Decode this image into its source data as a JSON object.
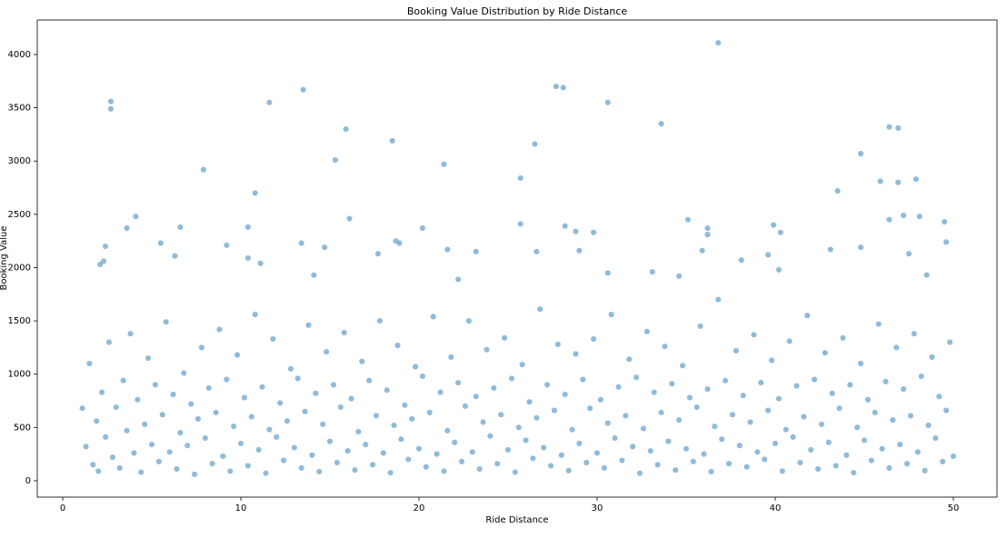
{
  "chart_data": {
    "type": "scatter",
    "title": "Booking Value Distribution by Ride Distance",
    "x_label": "Ride Distance",
    "y_label": "Booking Value",
    "color": "#1f77b4",
    "opacity": 0.5,
    "xlim": [
      -1.43,
      52.45
    ],
    "ylim": [
      -154,
      4324
    ],
    "xticks": [
      0,
      10,
      20,
      30,
      40,
      50
    ],
    "yticks": [
      0,
      500,
      1000,
      1500,
      2000,
      2500,
      3000,
      3500,
      4000
    ],
    "x": [
      1.1,
      1.3,
      1.5,
      1.7,
      1.9,
      2.0,
      2.2,
      2.4,
      2.6,
      2.8,
      3.0,
      3.2,
      3.4,
      3.6,
      3.8,
      4.0,
      4.2,
      4.4,
      4.6,
      4.8,
      5.0,
      5.2,
      5.4,
      5.6,
      5.8,
      6.0,
      6.2,
      6.4,
      6.6,
      6.8,
      7.0,
      7.2,
      7.4,
      7.6,
      7.8,
      8.0,
      8.2,
      8.4,
      8.6,
      8.8,
      9.0,
      9.2,
      9.4,
      9.6,
      9.8,
      10.0,
      10.2,
      10.4,
      10.6,
      10.8,
      11.0,
      11.2,
      11.4,
      11.6,
      11.8,
      12.0,
      12.2,
      12.4,
      12.6,
      12.8,
      13.0,
      13.2,
      13.4,
      13.6,
      13.8,
      14.0,
      14.2,
      14.4,
      14.6,
      14.8,
      15.0,
      15.2,
      15.4,
      15.6,
      15.8,
      16.0,
      16.2,
      16.4,
      16.6,
      16.8,
      17.0,
      17.2,
      17.4,
      17.6,
      17.8,
      18.0,
      18.2,
      18.4,
      18.6,
      18.8,
      19.0,
      19.2,
      19.4,
      19.6,
      19.8,
      20.0,
      20.2,
      20.4,
      20.6,
      20.8,
      21.0,
      21.2,
      21.4,
      21.6,
      21.8,
      22.0,
      22.2,
      22.4,
      22.6,
      22.8,
      23.0,
      23.2,
      23.4,
      23.6,
      23.8,
      24.0,
      24.2,
      24.4,
      24.6,
      24.8,
      25.0,
      25.2,
      25.4,
      25.6,
      25.8,
      26.0,
      26.2,
      26.4,
      26.6,
      26.8,
      27.0,
      27.2,
      27.4,
      27.6,
      27.8,
      28.0,
      28.2,
      28.4,
      28.6,
      28.8,
      29.0,
      29.2,
      29.4,
      29.6,
      29.8,
      30.0,
      30.2,
      30.4,
      30.6,
      30.8,
      31.0,
      31.2,
      31.4,
      31.6,
      31.8,
      32.0,
      32.2,
      32.4,
      32.6,
      32.8,
      33.0,
      33.2,
      33.4,
      33.6,
      33.8,
      34.0,
      34.2,
      34.4,
      34.6,
      34.8,
      35.0,
      35.2,
      35.4,
      35.6,
      35.8,
      36.0,
      36.2,
      36.4,
      36.6,
      36.8,
      37.0,
      37.2,
      37.4,
      37.6,
      37.8,
      38.0,
      38.2,
      38.4,
      38.6,
      38.8,
      39.0,
      39.2,
      39.4,
      39.6,
      39.8,
      40.0,
      40.2,
      40.4,
      40.6,
      40.8,
      41.0,
      41.2,
      41.4,
      41.6,
      41.8,
      42.0,
      42.2,
      42.4,
      42.6,
      42.8,
      43.0,
      43.2,
      43.4,
      43.6,
      43.8,
      44.0,
      44.2,
      44.4,
      44.6,
      44.8,
      45.0,
      45.2,
      45.4,
      45.6,
      45.8,
      46.0,
      46.2,
      46.4,
      46.6,
      46.8,
      47.0,
      47.2,
      47.4,
      47.6,
      47.8,
      48.0,
      48.2,
      48.4,
      48.6,
      48.8,
      49.0,
      49.2,
      49.4,
      49.6,
      49.8,
      50.0,
      2.7,
      2.7,
      11.6,
      13.5,
      15.9,
      15.3,
      7.9,
      18.5,
      21.4,
      26.5,
      25.7,
      27.7,
      28.1,
      30.6,
      33.6,
      36.8,
      44.8,
      46.4,
      46.9,
      45.9,
      46.9,
      47.9,
      43.5,
      10.8,
      4.1,
      6.6,
      10.4,
      16.1,
      20.2,
      18.7,
      25.7,
      28.2,
      29.8,
      35.1,
      36.2,
      39.9,
      40.3,
      46.4,
      47.2,
      48.1,
      49.5,
      49.6,
      2.4,
      2.3,
      2.1,
      3.6,
      5.5,
      6.3,
      9.2,
      10.4,
      11.1,
      13.4,
      14.1,
      14.7,
      17.7,
      18.9,
      21.6,
      22.2,
      23.2,
      26.6,
      28.8,
      29.0,
      30.6,
      33.1,
      34.6,
      35.9,
      36.2,
      38.1,
      39.6,
      40.2,
      43.1,
      44.8,
      47.5,
      48.5
    ],
    "y": [
      680,
      320,
      1100,
      150,
      560,
      90,
      830,
      410,
      1300,
      220,
      690,
      120,
      940,
      470,
      1380,
      260,
      760,
      80,
      530,
      1150,
      340,
      900,
      180,
      620,
      1490,
      270,
      810,
      110,
      450,
      1010,
      330,
      720,
      60,
      580,
      1250,
      400,
      870,
      160,
      640,
      1420,
      230,
      950,
      90,
      510,
      1180,
      350,
      780,
      140,
      600,
      1560,
      290,
      880,
      70,
      480,
      1330,
      410,
      730,
      190,
      560,
      1050,
      310,
      960,
      120,
      650,
      1460,
      240,
      820,
      85,
      530,
      1210,
      370,
      900,
      170,
      690,
      1390,
      280,
      770,
      100,
      460,
      1120,
      340,
      940,
      150,
      610,
      1500,
      260,
      850,
      75,
      520,
      1270,
      390,
      710,
      200,
      580,
      1070,
      300,
      980,
      130,
      640,
      1540,
      250,
      830,
      90,
      470,
      1160,
      360,
      920,
      180,
      700,
      1500,
      270,
      790,
      110,
      550,
      1230,
      420,
      870,
      160,
      620,
      1340,
      290,
      960,
      80,
      500,
      1090,
      380,
      740,
      210,
      590,
      1610,
      310,
      900,
      140,
      660,
      1280,
      240,
      810,
      95,
      480,
      1190,
      350,
      950,
      170,
      680,
      1330,
      260,
      760,
      120,
      540,
      1560,
      400,
      880,
      190,
      610,
      1140,
      320,
      970,
      70,
      490,
      1400,
      280,
      830,
      150,
      640,
      1260,
      370,
      910,
      100,
      570,
      1080,
      300,
      780,
      180,
      690,
      1450,
      250,
      860,
      85,
      510,
      1700,
      390,
      940,
      160,
      620,
      1220,
      330,
      800,
      130,
      550,
      1370,
      270,
      920,
      200,
      660,
      1130,
      350,
      770,
      90,
      480,
      1310,
      410,
      890,
      170,
      600,
      1550,
      290,
      950,
      110,
      530,
      1200,
      360,
      820,
      140,
      680,
      1340,
      240,
      900,
      75,
      500,
      1100,
      380,
      760,
      190,
      640,
      1470,
      300,
      930,
      120,
      570,
      1250,
      340,
      860,
      160,
      610,
      1380,
      270,
      980,
      95,
      520,
      1160,
      400,
      790,
      180,
      660,
      1300,
      230,
      3560,
      3490,
      3550,
      3670,
      3300,
      3010,
      2920,
      3190,
      2970,
      3160,
      2840,
      3700,
      3690,
      3550,
      3350,
      4110,
      3070,
      3320,
      3310,
      2810,
      2800,
      2830,
      2720,
      2700,
      2480,
      2380,
      2380,
      2460,
      2370,
      2250,
      2410,
      2390,
      2330,
      2450,
      2370,
      2400,
      2330,
      2450,
      2490,
      2480,
      2430,
      2240,
      2200,
      2060,
      2030,
      2370,
      2230,
      2110,
      2210,
      2090,
      2040,
      2230,
      1930,
      2190,
      2130,
      2230,
      2170,
      1890,
      2150,
      2150,
      2340,
      2160,
      1950,
      1960,
      1920,
      2160,
      2310,
      2070,
      2120,
      1980,
      2170,
      2190,
      2130,
      1930
    ]
  }
}
